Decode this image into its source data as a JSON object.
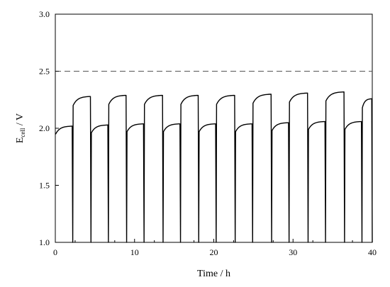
{
  "chart_data": {
    "type": "line",
    "xlabel": "Time / h",
    "ylabel": {
      "main": "E",
      "sub": "cell",
      "unit": " / V"
    },
    "xlim": [
      0,
      40
    ],
    "ylim": [
      1.0,
      3.0
    ],
    "xticks": [
      "0",
      "10",
      "20",
      "30",
      "40"
    ],
    "yticks": [
      "1.0",
      "1.5",
      "2.0",
      "2.5",
      "3.0"
    ],
    "grid": false,
    "reference_line": {
      "y": 2.5,
      "style": "dashed"
    },
    "series": [
      {
        "style": "solid",
        "charge_cycles": [
          {
            "start": 0.0,
            "end": 2.2,
            "top": 2.02
          },
          {
            "start": 4.5,
            "end": 6.7,
            "top": 2.03
          },
          {
            "start": 9.0,
            "end": 11.2,
            "top": 2.04
          },
          {
            "start": 13.6,
            "end": 15.8,
            "top": 2.04
          },
          {
            "start": 18.1,
            "end": 20.3,
            "top": 2.04
          },
          {
            "start": 22.7,
            "end": 24.9,
            "top": 2.04
          },
          {
            "start": 27.3,
            "end": 29.5,
            "top": 2.05
          },
          {
            "start": 31.9,
            "end": 34.1,
            "top": 2.06
          },
          {
            "start": 36.5,
            "end": 38.7,
            "top": 2.06
          }
        ],
        "discharge_cycles": [
          {
            "start": 2.2,
            "end": 4.5,
            "top": 2.28
          },
          {
            "start": 6.7,
            "end": 9.0,
            "top": 2.29
          },
          {
            "start": 11.2,
            "end": 13.6,
            "top": 2.29
          },
          {
            "start": 15.8,
            "end": 18.1,
            "top": 2.29
          },
          {
            "start": 20.3,
            "end": 22.7,
            "top": 2.29
          },
          {
            "start": 24.9,
            "end": 27.3,
            "top": 2.3
          },
          {
            "start": 29.5,
            "end": 31.9,
            "top": 2.31
          },
          {
            "start": 34.1,
            "end": 36.5,
            "top": 2.32
          },
          {
            "start": 38.7,
            "end": 40.0,
            "top": 2.26
          }
        ]
      }
    ]
  }
}
